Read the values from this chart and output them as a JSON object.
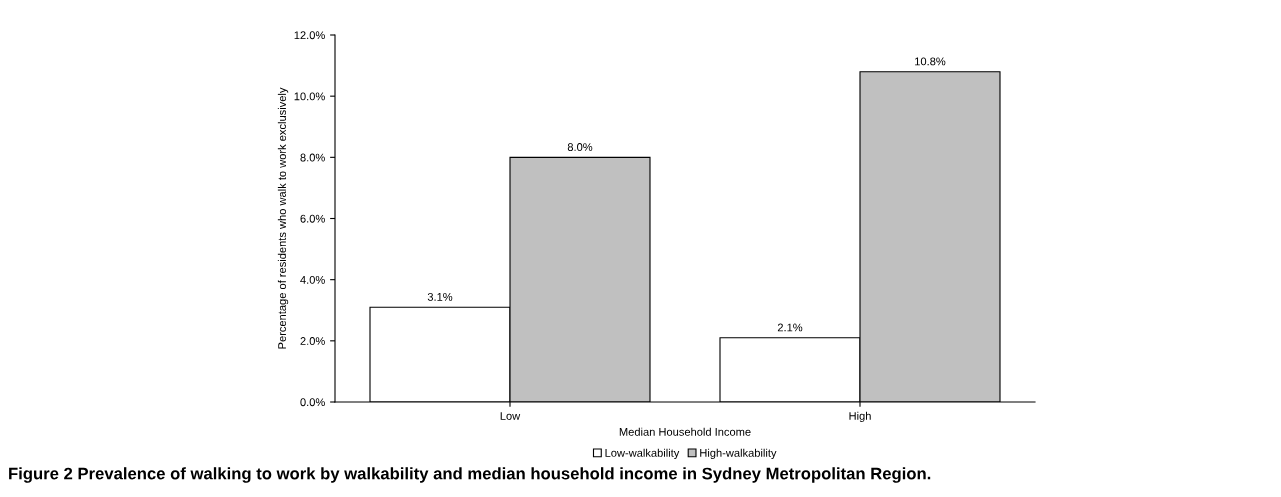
{
  "chart_data": {
    "type": "bar",
    "xlabel": "Median Household Income",
    "ylabel": "Percentage of residents who walk to work exclusively",
    "categories": [
      "Low",
      "High"
    ],
    "series": [
      {
        "name": "Low-walkability",
        "color": "#ffffff",
        "values": [
          3.1,
          2.1
        ],
        "value_labels": [
          "3.1%",
          "2.1%"
        ]
      },
      {
        "name": "High-walkability",
        "color": "#c0c0c0",
        "values": [
          8.0,
          10.8
        ],
        "value_labels": [
          "8.0%",
          "10.8%"
        ]
      }
    ],
    "ylim": [
      0,
      12
    ],
    "yticks": [
      {
        "value": 0,
        "label": "0.0%"
      },
      {
        "value": 2,
        "label": "2.0%"
      },
      {
        "value": 4,
        "label": "4.0%"
      },
      {
        "value": 6,
        "label": "6.0%"
      },
      {
        "value": 8,
        "label": "8.0%"
      },
      {
        "value": 10,
        "label": "10.0%"
      },
      {
        "value": 12,
        "label": "12.0%"
      }
    ],
    "grid": false,
    "legend": "bottom",
    "annotations": [
      "Figure 2 Prevalence of walking to work by walkability and median household income in Sydney Metropolitan Region."
    ]
  }
}
